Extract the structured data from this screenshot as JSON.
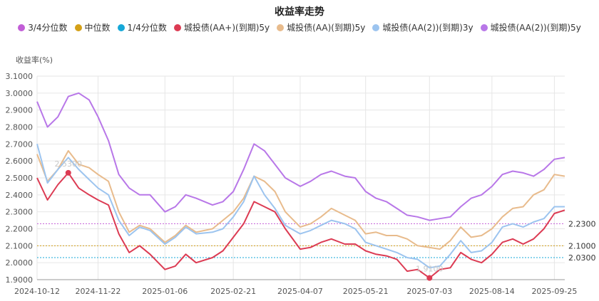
{
  "chart_data": {
    "type": "line",
    "title": "收益率走势",
    "ylabel": "收益率(%)",
    "xlabel": "",
    "ylim": [
      1.9,
      3.1
    ],
    "yticks": [
      "1.9000",
      "2.0000",
      "2.1000",
      "2.2000",
      "2.3000",
      "2.4000",
      "2.5000",
      "2.6000",
      "2.7000",
      "2.8000",
      "2.9000",
      "3.0000",
      "3.1000"
    ],
    "xticks": [
      "2024-10-12",
      "2024-11-22",
      "2025-01-06",
      "2025-02-21",
      "2025-04-07",
      "2025-05-21",
      "2025-07-03",
      "2025-08-14",
      "2025-09-25"
    ],
    "legend_position": "top-center",
    "reference_lines": [
      {
        "name": "3/4分位数",
        "value": 2.23,
        "label": "2.2300",
        "color": "#c25ed7"
      },
      {
        "name": "中位数",
        "value": 2.1,
        "label": "2.1000",
        "color": "#d4a017"
      },
      {
        "name": "1/4分位数",
        "value": 2.03,
        "label": "2.0300",
        "color": "#16a8d8"
      }
    ],
    "annotations": [
      {
        "series": "城投债(AA+)(到期)5y",
        "x": "2024-11-02",
        "y": 2.53,
        "label": "2.5300"
      },
      {
        "series": "城投债(AA+)(到期)5y",
        "x": "2025-07-03",
        "y": 1.91,
        "label": "1.9100"
      }
    ],
    "series": [
      {
        "name": "城投债(AA+)(到期)5y",
        "color": "#dc3b53",
        "x": [
          "2024-10-12",
          "2024-10-19",
          "2024-10-26",
          "2024-11-02",
          "2024-11-09",
          "2024-11-16",
          "2024-11-22",
          "2024-11-29",
          "2024-12-06",
          "2024-12-13",
          "2024-12-20",
          "2024-12-27",
          "2025-01-06",
          "2025-01-13",
          "2025-01-20",
          "2025-01-27",
          "2025-02-07",
          "2025-02-14",
          "2025-02-21",
          "2025-02-28",
          "2025-03-07",
          "2025-03-14",
          "2025-03-21",
          "2025-03-28",
          "2025-04-07",
          "2025-04-14",
          "2025-04-21",
          "2025-04-28",
          "2025-05-07",
          "2025-05-14",
          "2025-05-21",
          "2025-05-28",
          "2025-06-04",
          "2025-06-11",
          "2025-06-18",
          "2025-06-25",
          "2025-07-03",
          "2025-07-10",
          "2025-07-17",
          "2025-07-24",
          "2025-07-31",
          "2025-08-07",
          "2025-08-14",
          "2025-08-21",
          "2025-08-28",
          "2025-09-04",
          "2025-09-11",
          "2025-09-18",
          "2025-09-25",
          "2025-10-02"
        ],
        "values": [
          2.5,
          2.37,
          2.46,
          2.53,
          2.44,
          2.4,
          2.37,
          2.34,
          2.17,
          2.06,
          2.1,
          2.05,
          1.96,
          1.98,
          2.05,
          2.0,
          2.03,
          2.07,
          2.15,
          2.23,
          2.36,
          2.33,
          2.3,
          2.2,
          2.08,
          2.09,
          2.12,
          2.14,
          2.11,
          2.11,
          2.07,
          2.05,
          2.04,
          2.02,
          1.95,
          1.96,
          1.91,
          1.96,
          1.97,
          2.06,
          2.02,
          2.0,
          2.05,
          2.12,
          2.14,
          2.11,
          2.14,
          2.2,
          2.29,
          2.31
        ]
      },
      {
        "name": "城投债(AA)(到期)5y",
        "color": "#e8bb8c",
        "x": [
          "2024-10-12",
          "2024-10-19",
          "2024-10-26",
          "2024-11-02",
          "2024-11-09",
          "2024-11-16",
          "2024-11-22",
          "2024-11-29",
          "2024-12-06",
          "2024-12-13",
          "2024-12-20",
          "2024-12-27",
          "2025-01-06",
          "2025-01-13",
          "2025-01-20",
          "2025-01-27",
          "2025-02-07",
          "2025-02-14",
          "2025-02-21",
          "2025-02-28",
          "2025-03-07",
          "2025-03-14",
          "2025-03-21",
          "2025-03-28",
          "2025-04-07",
          "2025-04-14",
          "2025-04-21",
          "2025-04-28",
          "2025-05-07",
          "2025-05-14",
          "2025-05-21",
          "2025-05-28",
          "2025-06-04",
          "2025-06-11",
          "2025-06-18",
          "2025-06-25",
          "2025-07-03",
          "2025-07-10",
          "2025-07-17",
          "2025-07-24",
          "2025-07-31",
          "2025-08-07",
          "2025-08-14",
          "2025-08-21",
          "2025-08-28",
          "2025-09-04",
          "2025-09-11",
          "2025-09-18",
          "2025-09-25",
          "2025-10-02"
        ],
        "values": [
          2.64,
          2.48,
          2.55,
          2.66,
          2.58,
          2.56,
          2.52,
          2.48,
          2.3,
          2.18,
          2.22,
          2.2,
          2.12,
          2.16,
          2.22,
          2.18,
          2.2,
          2.25,
          2.3,
          2.38,
          2.51,
          2.48,
          2.42,
          2.3,
          2.21,
          2.23,
          2.27,
          2.32,
          2.28,
          2.25,
          2.17,
          2.18,
          2.16,
          2.16,
          2.14,
          2.1,
          2.09,
          2.08,
          2.13,
          2.21,
          2.15,
          2.16,
          2.2,
          2.27,
          2.32,
          2.33,
          2.4,
          2.43,
          2.52,
          2.51
        ]
      },
      {
        "name": "城投债(AA(2))(到期)3y",
        "color": "#9cc4ef",
        "x": [
          "2024-10-12",
          "2024-10-19",
          "2024-10-26",
          "2024-11-02",
          "2024-11-09",
          "2024-11-16",
          "2024-11-22",
          "2024-11-29",
          "2024-12-06",
          "2024-12-13",
          "2024-12-20",
          "2024-12-27",
          "2025-01-06",
          "2025-01-13",
          "2025-01-20",
          "2025-01-27",
          "2025-02-07",
          "2025-02-14",
          "2025-02-21",
          "2025-02-28",
          "2025-03-07",
          "2025-03-14",
          "2025-03-21",
          "2025-03-28",
          "2025-04-07",
          "2025-04-14",
          "2025-04-21",
          "2025-04-28",
          "2025-05-07",
          "2025-05-14",
          "2025-05-21",
          "2025-05-28",
          "2025-06-04",
          "2025-06-11",
          "2025-06-18",
          "2025-06-25",
          "2025-07-03",
          "2025-07-10",
          "2025-07-17",
          "2025-07-24",
          "2025-07-31",
          "2025-08-07",
          "2025-08-14",
          "2025-08-21",
          "2025-08-28",
          "2025-09-04",
          "2025-09-11",
          "2025-09-18",
          "2025-09-25",
          "2025-10-02"
        ],
        "values": [
          2.7,
          2.47,
          2.55,
          2.62,
          2.55,
          2.49,
          2.44,
          2.4,
          2.25,
          2.16,
          2.21,
          2.19,
          2.11,
          2.15,
          2.21,
          2.17,
          2.18,
          2.2,
          2.27,
          2.36,
          2.51,
          2.4,
          2.32,
          2.22,
          2.17,
          2.19,
          2.22,
          2.25,
          2.23,
          2.2,
          2.12,
          2.1,
          2.08,
          2.06,
          2.03,
          2.02,
          1.97,
          1.98,
          2.05,
          2.13,
          2.06,
          2.07,
          2.12,
          2.21,
          2.23,
          2.21,
          2.24,
          2.26,
          2.33,
          2.33
        ]
      },
      {
        "name": "城投债(AA(2))(到期)5y",
        "color": "#b877e8",
        "x": [
          "2024-10-12",
          "2024-10-19",
          "2024-10-26",
          "2024-11-02",
          "2024-11-09",
          "2024-11-16",
          "2024-11-22",
          "2024-11-29",
          "2024-12-06",
          "2024-12-13",
          "2024-12-20",
          "2024-12-27",
          "2025-01-06",
          "2025-01-13",
          "2025-01-20",
          "2025-01-27",
          "2025-02-07",
          "2025-02-14",
          "2025-02-21",
          "2025-02-28",
          "2025-03-07",
          "2025-03-14",
          "2025-03-21",
          "2025-03-28",
          "2025-04-07",
          "2025-04-14",
          "2025-04-21",
          "2025-04-28",
          "2025-05-07",
          "2025-05-14",
          "2025-05-21",
          "2025-05-28",
          "2025-06-04",
          "2025-06-11",
          "2025-06-18",
          "2025-06-25",
          "2025-07-03",
          "2025-07-10",
          "2025-07-17",
          "2025-07-24",
          "2025-07-31",
          "2025-08-07",
          "2025-08-14",
          "2025-08-21",
          "2025-08-28",
          "2025-09-04",
          "2025-09-11",
          "2025-09-18",
          "2025-09-25",
          "2025-10-02"
        ],
        "values": [
          2.95,
          2.8,
          2.86,
          2.98,
          3.0,
          2.96,
          2.86,
          2.72,
          2.52,
          2.44,
          2.4,
          2.4,
          2.3,
          2.33,
          2.4,
          2.38,
          2.34,
          2.36,
          2.42,
          2.55,
          2.7,
          2.66,
          2.58,
          2.5,
          2.45,
          2.48,
          2.52,
          2.54,
          2.51,
          2.5,
          2.42,
          2.38,
          2.36,
          2.32,
          2.28,
          2.27,
          2.25,
          2.26,
          2.27,
          2.33,
          2.38,
          2.4,
          2.45,
          2.52,
          2.54,
          2.53,
          2.51,
          2.55,
          2.61,
          2.62
        ]
      }
    ]
  }
}
